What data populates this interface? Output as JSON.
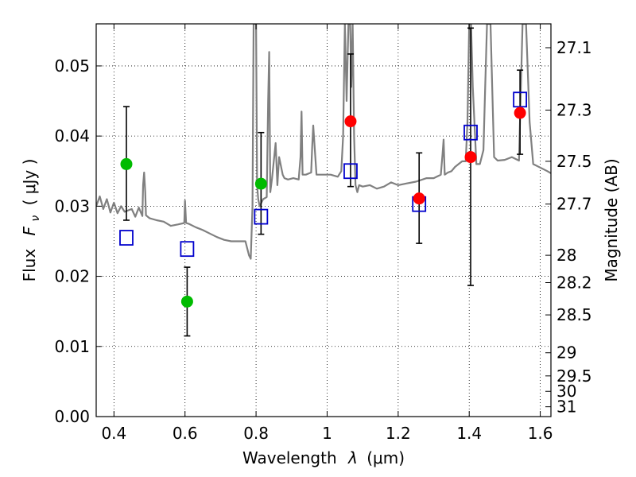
{
  "chart_data": {
    "type": "scatter",
    "xlabel": "Wavelength",
    "xlabel_symbol": "λ",
    "xlabel_unit": "(μm)",
    "ylabel": "Flux",
    "ylabel_symbol": "F",
    "ylabel_sub": "ν",
    "ylabel_unit": "( μJy )",
    "y2label": "Magnitude (AB)",
    "xlim": [
      0.35,
      1.63
    ],
    "ylim": [
      0.0,
      0.056
    ],
    "grid": true,
    "x_ticks": [
      0.4,
      0.6,
      0.8,
      1.0,
      1.2,
      1.4,
      1.6
    ],
    "x_tick_labels": [
      "0.4",
      "0.6",
      "0.8",
      "1",
      "1.2",
      "1.4",
      "1.6"
    ],
    "y_ticks": [
      0.0,
      0.01,
      0.02,
      0.03,
      0.04,
      0.05
    ],
    "y_tick_labels": [
      "0.00",
      "0.01",
      "0.02",
      "0.03",
      "0.04",
      "0.05"
    ],
    "y2_ticks": [
      {
        "label": "27.1",
        "flux": 0.0526
      },
      {
        "label": "27.3",
        "flux": 0.0437
      },
      {
        "label": "27.5",
        "flux": 0.0364
      },
      {
        "label": "27.7",
        "flux": 0.0303
      },
      {
        "label": "28",
        "flux": 0.023
      },
      {
        "label": "28.2",
        "flux": 0.0191
      },
      {
        "label": "28.5",
        "flux": 0.0145
      },
      {
        "label": "29",
        "flux": 0.0091
      },
      {
        "label": "29.5",
        "flux": 0.0058
      },
      {
        "label": "30",
        "flux": 0.0036
      },
      {
        "label": "31",
        "flux": 0.0014
      }
    ],
    "series": [
      {
        "marker": "circle",
        "color": "#00bb00",
        "points": [
          {
            "x": 0.435,
            "y": 0.036,
            "err_lo": 0.028,
            "err_hi": 0.0442
          },
          {
            "x": 0.606,
            "y": 0.0164,
            "err_lo": 0.0115,
            "err_hi": 0.0213
          },
          {
            "x": 0.814,
            "y": 0.0332,
            "err_lo": 0.026,
            "err_hi": 0.0405
          }
        ]
      },
      {
        "marker": "circle",
        "color": "#ff0000",
        "points": [
          {
            "x": 1.066,
            "y": 0.0421,
            "err_lo": 0.0328,
            "err_hi": 0.0517
          },
          {
            "x": 1.259,
            "y": 0.0311,
            "err_lo": 0.0247,
            "err_hi": 0.0376
          },
          {
            "x": 1.404,
            "y": 0.037,
            "err_lo": 0.0187,
            "err_hi": 0.0554
          },
          {
            "x": 1.543,
            "y": 0.0433,
            "err_lo": 0.0374,
            "err_hi": 0.0494
          }
        ]
      },
      {
        "marker": "square-open",
        "color": "#0000cc",
        "points": [
          {
            "x": 0.435,
            "y": 0.0255
          },
          {
            "x": 0.606,
            "y": 0.0239
          },
          {
            "x": 0.814,
            "y": 0.0285
          },
          {
            "x": 1.066,
            "y": 0.035
          },
          {
            "x": 1.259,
            "y": 0.0303
          },
          {
            "x": 1.404,
            "y": 0.0405
          },
          {
            "x": 1.543,
            "y": 0.0452
          }
        ]
      }
    ],
    "spectrum": {
      "color": "#808080",
      "x": [
        0.35,
        0.36,
        0.37,
        0.38,
        0.39,
        0.4,
        0.41,
        0.42,
        0.43,
        0.44,
        0.45,
        0.46,
        0.47,
        0.48,
        0.482,
        0.485,
        0.488,
        0.49,
        0.5,
        0.52,
        0.54,
        0.56,
        0.58,
        0.598,
        0.6,
        0.603,
        0.61,
        0.63,
        0.65,
        0.67,
        0.69,
        0.71,
        0.73,
        0.75,
        0.77,
        0.78,
        0.785,
        0.79,
        0.793,
        0.797,
        0.8,
        0.803,
        0.806,
        0.81,
        0.82,
        0.83,
        0.834,
        0.837,
        0.84,
        0.845,
        0.855,
        0.86,
        0.865,
        0.875,
        0.88,
        0.89,
        0.905,
        0.92,
        0.925,
        0.928,
        0.931,
        0.94,
        0.955,
        0.958,
        0.961,
        0.97,
        0.99,
        1.01,
        1.03,
        1.04,
        1.045,
        1.05,
        1.055,
        1.06,
        1.062,
        1.065,
        1.068,
        1.072,
        1.076,
        1.08,
        1.085,
        1.09,
        1.1,
        1.12,
        1.14,
        1.16,
        1.18,
        1.2,
        1.22,
        1.25,
        1.28,
        1.3,
        1.32,
        1.325,
        1.328,
        1.331,
        1.34,
        1.35,
        1.36,
        1.37,
        1.38,
        1.39,
        1.395,
        1.4,
        1.405,
        1.41,
        1.42,
        1.43,
        1.44,
        1.445,
        1.45,
        1.455,
        1.46,
        1.47,
        1.48,
        1.5,
        1.52,
        1.54,
        1.55,
        1.56,
        1.57,
        1.58,
        1.6,
        1.62,
        1.63
      ],
      "y": [
        0.03,
        0.0314,
        0.0296,
        0.031,
        0.0291,
        0.0305,
        0.029,
        0.03,
        0.0292,
        0.0294,
        0.0296,
        0.0285,
        0.0298,
        0.0286,
        0.033,
        0.0348,
        0.032,
        0.0287,
        0.0283,
        0.028,
        0.0278,
        0.0272,
        0.0274,
        0.0276,
        0.0308,
        0.0276,
        0.0275,
        0.027,
        0.0266,
        0.0261,
        0.0256,
        0.0252,
        0.025,
        0.025,
        0.025,
        0.023,
        0.0225,
        0.03,
        0.056,
        0.056,
        0.056,
        0.033,
        0.031,
        0.03,
        0.031,
        0.0313,
        0.045,
        0.052,
        0.032,
        0.034,
        0.039,
        0.033,
        0.037,
        0.0345,
        0.034,
        0.0338,
        0.034,
        0.0338,
        0.037,
        0.0435,
        0.0345,
        0.0345,
        0.0348,
        0.0385,
        0.0415,
        0.0345,
        0.0345,
        0.0345,
        0.0342,
        0.035,
        0.04,
        0.056,
        0.045,
        0.056,
        0.056,
        0.056,
        0.047,
        0.056,
        0.04,
        0.033,
        0.032,
        0.033,
        0.0328,
        0.033,
        0.0325,
        0.0328,
        0.0334,
        0.033,
        0.0332,
        0.0335,
        0.034,
        0.034,
        0.0345,
        0.0375,
        0.0395,
        0.0345,
        0.0348,
        0.035,
        0.0356,
        0.036,
        0.0364,
        0.0364,
        0.042,
        0.056,
        0.056,
        0.047,
        0.036,
        0.036,
        0.038,
        0.047,
        0.056,
        0.056,
        0.056,
        0.037,
        0.0365,
        0.0366,
        0.037,
        0.0365,
        0.056,
        0.056,
        0.042,
        0.036,
        0.0355,
        0.035,
        0.0347
      ]
    }
  }
}
